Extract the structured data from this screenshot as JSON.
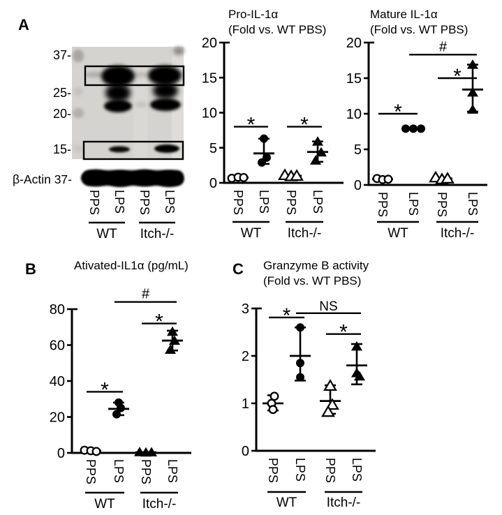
{
  "figure": {
    "background": "#ffffff",
    "ink_color": "#000000",
    "membrane_color": "#d5d3cf"
  },
  "panels": {
    "a": "A",
    "b": "B",
    "c": "C"
  },
  "blot": {
    "pro_label": "Pro-IL1α",
    "mature_label": "Mature IL1α",
    "mw_labels": [
      "37-",
      "25-",
      "20-",
      "15-"
    ],
    "actin_label": "β-Actin 37-",
    "lanes": [
      "PPS",
      "LPS",
      "PPS",
      "LPS"
    ],
    "groups": [
      "WT",
      "Itch-/-"
    ]
  },
  "chart_data": [
    {
      "id": "pro-il1a",
      "type": "scatter",
      "title": "Pro-IL-1α",
      "subtitle": "(Fold vs. WT PBS)",
      "ylabel": "Fold vs. WT PBS",
      "ylim": [
        0,
        20
      ],
      "yticks": [
        0,
        5,
        10,
        15,
        20
      ],
      "grid": false,
      "categories": [
        "PPS",
        "LPS",
        "PPS",
        "LPS"
      ],
      "group_labels": [
        "WT",
        "Itch-/-"
      ],
      "series": [
        {
          "name": "WT PPS",
          "marker": "open-circle",
          "values": [
            0.65,
            0.8,
            0.75
          ],
          "mean": 0.75
        },
        {
          "name": "WT LPS",
          "marker": "filled-circle",
          "values": [
            6.3,
            3.6,
            2.9
          ],
          "mean": 4.2,
          "error_range": [
            2.7,
            6.3
          ]
        },
        {
          "name": "Itch-/- PPS",
          "marker": "open-triangle",
          "values": [
            1.1,
            0.95,
            1.0
          ],
          "mean": 1.0
        },
        {
          "name": "Itch-/- LPS",
          "marker": "filled-triangle",
          "values": [
            5.9,
            4.35,
            3.2
          ],
          "mean": 4.4,
          "error_range": [
            3.0,
            5.9
          ]
        }
      ],
      "significance": [
        {
          "label": "*",
          "from": 0,
          "to": 1,
          "y": 8
        },
        {
          "label": "*",
          "from": 2,
          "to": 3,
          "y": 8
        }
      ]
    },
    {
      "id": "mature-il1a",
      "type": "scatter",
      "title": "Mature IL-1α",
      "subtitle": "(Fold vs. WT PBS)",
      "ylabel": "Fold vs. WT PBS",
      "ylim": [
        0,
        20
      ],
      "yticks": [
        0,
        5,
        10,
        15,
        20
      ],
      "grid": false,
      "categories": [
        "PPS",
        "LPS",
        "PPS",
        "LPS"
      ],
      "group_labels": [
        "WT",
        "Itch-/-"
      ],
      "series": [
        {
          "name": "WT PPS",
          "marker": "open-circle",
          "values": [
            0.9,
            0.75,
            0.8
          ],
          "mean": 0.8
        },
        {
          "name": "WT LPS",
          "marker": "filled-circle",
          "values": [
            7.9,
            7.9,
            7.9
          ],
          "mean": 7.9
        },
        {
          "name": "Itch-/- PPS",
          "marker": "open-triangle",
          "values": [
            1.05,
            0.8,
            0.9
          ],
          "mean": 0.9
        },
        {
          "name": "Itch-/- LPS",
          "marker": "filled-triangle",
          "values": [
            16.9,
            13.0,
            10.6
          ],
          "mean": 13.4,
          "error_range": [
            10.3,
            16.9
          ]
        }
      ],
      "significance": [
        {
          "label": "*",
          "from": 0,
          "to": 1,
          "y": 10
        },
        {
          "label": "*",
          "from": 2,
          "to": 3,
          "y": 15
        },
        {
          "label": "#",
          "from": 1,
          "to": 3,
          "y": 18.3
        }
      ]
    },
    {
      "id": "activated-il1a",
      "type": "scatter",
      "title": "Ativated-IL1α (pg/mL)",
      "subtitle": "",
      "ylabel": "pg/mL",
      "ylim": [
        0,
        80
      ],
      "yticks": [
        0,
        20,
        40,
        60,
        80
      ],
      "grid": false,
      "categories": [
        "PPS",
        "LPS",
        "PPS",
        "LPS"
      ],
      "group_labels": [
        "WT",
        "Itch-/-"
      ],
      "series": [
        {
          "name": "WT PPS",
          "marker": "open-circle",
          "values": [
            1.5,
            1.2,
            0.8
          ],
          "mean": 1.2
        },
        {
          "name": "WT LPS",
          "marker": "filled-circle",
          "values": [
            28,
            25,
            21.5
          ],
          "mean": 24.5,
          "error_range": [
            21,
            28
          ]
        },
        {
          "name": "Itch-/- PPS",
          "marker": "filled-triangle",
          "values": [
            0.5,
            0.3,
            0.4
          ],
          "mean": 0.35
        },
        {
          "name": "Itch-/- LPS",
          "marker": "filled-triangle",
          "values": [
            67.5,
            62.5,
            57.5
          ],
          "mean": 62.5,
          "error_range": [
            57,
            68
          ]
        }
      ],
      "significance": [
        {
          "label": "*",
          "from": 0,
          "to": 1,
          "y": 34
        },
        {
          "label": "*",
          "from": 2,
          "to": 3,
          "y": 72
        },
        {
          "label": "#",
          "from": 1,
          "to": 3,
          "y": 84
        }
      ]
    },
    {
      "id": "granzyme-b",
      "type": "scatter",
      "title": "Granzyme B activity",
      "subtitle": "(Fold vs. WT PBS)",
      "ylabel": "Fold vs. WT PBS",
      "ylim": [
        0,
        3
      ],
      "yticks": [
        0,
        1,
        2,
        3
      ],
      "grid": false,
      "categories": [
        "PPS",
        "LPS",
        "PPS",
        "LPS"
      ],
      "group_labels": [
        "WT",
        "Itch-/-"
      ],
      "series": [
        {
          "name": "WT PPS",
          "marker": "open-circle",
          "values": [
            1.15,
            1.0,
            0.87
          ],
          "mean": 1.0,
          "error_range": [
            0.85,
            1.17
          ]
        },
        {
          "name": "WT LPS",
          "marker": "filled-circle",
          "values": [
            2.6,
            1.85,
            1.55
          ],
          "mean": 2.0,
          "error_range": [
            1.48,
            2.6
          ]
        },
        {
          "name": "Itch-/- PPS",
          "marker": "open-triangle",
          "values": [
            1.37,
            0.97,
            0.82
          ],
          "mean": 1.05,
          "error_range": [
            0.78,
            1.38
          ]
        },
        {
          "name": "Itch-/- LPS",
          "marker": "filled-triangle",
          "values": [
            2.2,
            1.64,
            1.57
          ],
          "mean": 1.8,
          "error_range": [
            1.4,
            2.25
          ]
        }
      ],
      "significance": [
        {
          "label": "*",
          "from": 0,
          "to": 1,
          "y": 2.81
        },
        {
          "label": "*",
          "from": 2,
          "to": 3,
          "y": 2.46
        },
        {
          "label": "NS",
          "from": 1,
          "to": 3,
          "y": 2.9
        }
      ]
    }
  ]
}
